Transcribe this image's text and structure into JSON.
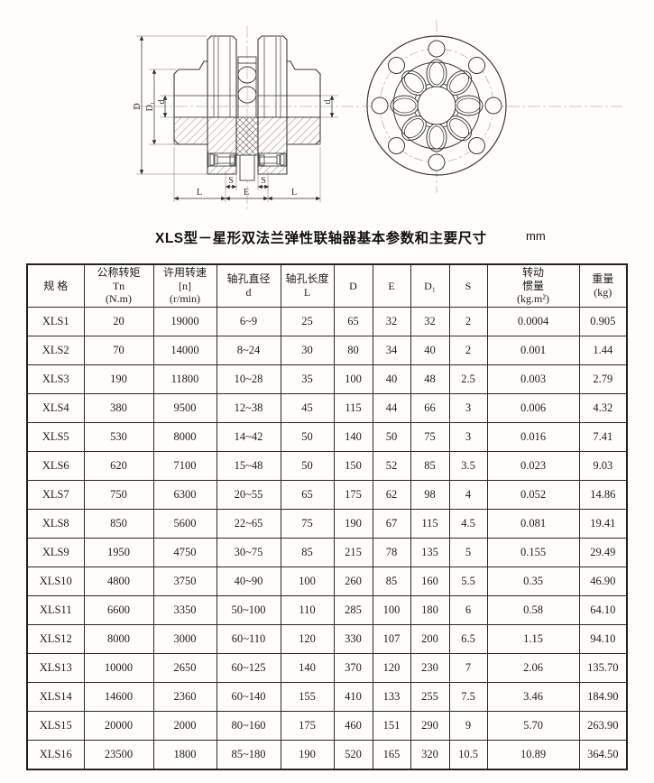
{
  "title": {
    "text": "XLS型－星形双法兰弹性联轴器基本参数和主要尺寸",
    "unit": "mm"
  },
  "drawing": {
    "labels": {
      "D": "D",
      "D1": "D₁",
      "d_left": "d",
      "d_right": "d",
      "S_left": "S",
      "S_right": "S",
      "L_left": "L",
      "E": "E",
      "L_right": "L"
    }
  },
  "table": {
    "headers": [
      "规  格",
      "公称转矩\nTn\n(N.m)",
      "许用转速\n[n]\n(r/min)",
      "轴孔直径\nd",
      "轴孔长度\nL",
      "D",
      "E",
      "D₁",
      "S",
      "转动\n惯量\n(kg.m²)",
      "重量\n(kg)"
    ],
    "rows": [
      [
        "XLS1",
        "20",
        "19000",
        "6~9",
        "25",
        "65",
        "32",
        "32",
        "2",
        "0.0004",
        "0.905"
      ],
      [
        "XLS2",
        "70",
        "14000",
        "8~24",
        "30",
        "80",
        "34",
        "40",
        "2",
        "0.001",
        "1.44"
      ],
      [
        "XLS3",
        "190",
        "11800",
        "10~28",
        "35",
        "100",
        "40",
        "48",
        "2.5",
        "0.003",
        "2.79"
      ],
      [
        "XLS4",
        "380",
        "9500",
        "12~38",
        "45",
        "115",
        "44",
        "66",
        "3",
        "0.006",
        "4.32"
      ],
      [
        "XLS5",
        "530",
        "8000",
        "14~42",
        "50",
        "140",
        "50",
        "75",
        "3",
        "0.016",
        "7.41"
      ],
      [
        "XLS6",
        "620",
        "7100",
        "15~48",
        "50",
        "150",
        "52",
        "85",
        "3.5",
        "0.023",
        "9.03"
      ],
      [
        "XLS7",
        "750",
        "6300",
        "20~55",
        "65",
        "175",
        "62",
        "98",
        "4",
        "0.052",
        "14.86"
      ],
      [
        "XLS8",
        "850",
        "5600",
        "22~65",
        "75",
        "190",
        "67",
        "115",
        "4.5",
        "0.081",
        "19.41"
      ],
      [
        "XLS9",
        "1950",
        "4750",
        "30~75",
        "85",
        "215",
        "78",
        "135",
        "5",
        "0.155",
        "29.49"
      ],
      [
        "XLS10",
        "4800",
        "3750",
        "40~90",
        "100",
        "260",
        "85",
        "160",
        "5.5",
        "0.35",
        "46.90"
      ],
      [
        "XLS11",
        "6600",
        "3350",
        "50~100",
        "110",
        "285",
        "100",
        "180",
        "6",
        "0.58",
        "64.10"
      ],
      [
        "XLS12",
        "8000",
        "3000",
        "60~110",
        "120",
        "330",
        "107",
        "200",
        "6.5",
        "1.15",
        "94.10"
      ],
      [
        "XLS13",
        "10000",
        "2650",
        "60~125",
        "140",
        "370",
        "120",
        "230",
        "7",
        "2.06",
        "135.70"
      ],
      [
        "XLS14",
        "14600",
        "2360",
        "60~140",
        "155",
        "410",
        "133",
        "255",
        "7.5",
        "3.46",
        "184.90"
      ],
      [
        "XLS15",
        "20000",
        "2000",
        "80~160",
        "175",
        "460",
        "151",
        "290",
        "9",
        "5.70",
        "263.90"
      ],
      [
        "XLS16",
        "23500",
        "1800",
        "85~180",
        "190",
        "520",
        "165",
        "320",
        "10.5",
        "10.89",
        "364.50"
      ]
    ]
  }
}
